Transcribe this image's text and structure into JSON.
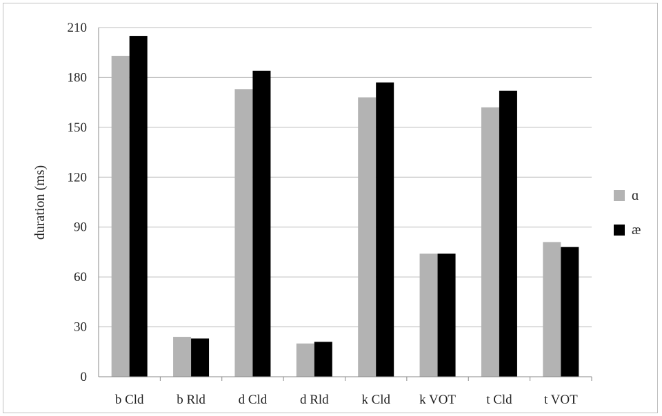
{
  "chart_data": {
    "type": "bar",
    "title": "",
    "xlabel": "",
    "ylabel": "duration (ms)",
    "ylim": [
      0,
      210
    ],
    "yticks": [
      0,
      30,
      60,
      90,
      120,
      150,
      180,
      210
    ],
    "grid": true,
    "legend_position": "right",
    "categories": [
      "b Cld",
      "b Rld",
      "d Cld",
      "d Rld",
      "k Cld",
      "k VOT",
      "t Cld",
      "t VOT"
    ],
    "series": [
      {
        "name": "ɑ",
        "color": "#b3b3b3",
        "values": [
          193,
          24,
          173,
          20,
          168,
          74,
          162,
          81
        ]
      },
      {
        "name": "æ",
        "color": "#000000",
        "values": [
          205,
          23,
          184,
          21,
          177,
          74,
          172,
          78
        ]
      }
    ]
  }
}
